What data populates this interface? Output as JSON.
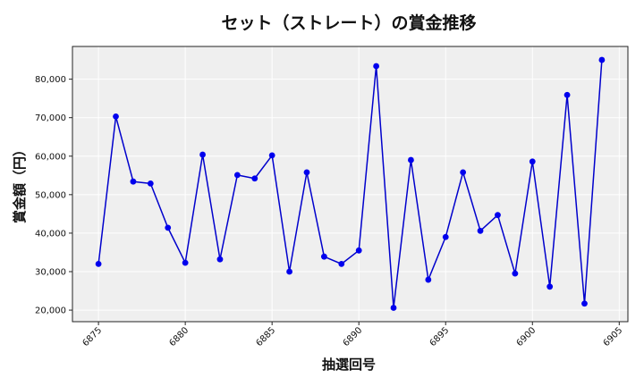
{
  "chart_data": {
    "type": "line",
    "title": "セット（ストレート）の賞金推移",
    "xlabel": "抽選回号",
    "ylabel": "賞金額（円）",
    "xlim": [
      6873.5,
      6905.5
    ],
    "ylim": [
      17000,
      88500
    ],
    "x_ticks": [
      6875,
      6880,
      6885,
      6890,
      6895,
      6900,
      6905
    ],
    "y_ticks": [
      20000,
      30000,
      40000,
      50000,
      60000,
      70000,
      80000
    ],
    "x_tick_labels": [
      "6875",
      "6880",
      "6885",
      "6890",
      "6895",
      "6900",
      "6905"
    ],
    "y_tick_labels": [
      "20,000",
      "30,000",
      "40,000",
      "50,000",
      "60,000",
      "70,000",
      "80,000"
    ],
    "grid": true,
    "line_color": "#0000cc",
    "marker_color": "#0000ee",
    "plot_background": "#efefef",
    "series": [
      {
        "x": [
          6875,
          6876,
          6877,
          6878,
          6879,
          6880,
          6881,
          6882,
          6883,
          6884,
          6885,
          6886,
          6887,
          6888,
          6889,
          6890,
          6891,
          6892,
          6893,
          6894,
          6895,
          6896,
          6897,
          6898,
          6899,
          6900,
          6901,
          6902,
          6903,
          6904
        ],
        "values": [
          32000,
          70300,
          53400,
          52900,
          41400,
          32300,
          60400,
          33200,
          55100,
          54200,
          60200,
          30000,
          55800,
          33900,
          32000,
          35500,
          83400,
          20600,
          59000,
          27900,
          39000,
          55800,
          40600,
          44700,
          29500,
          58600,
          26100,
          75900,
          21700,
          85000
        ]
      }
    ]
  }
}
